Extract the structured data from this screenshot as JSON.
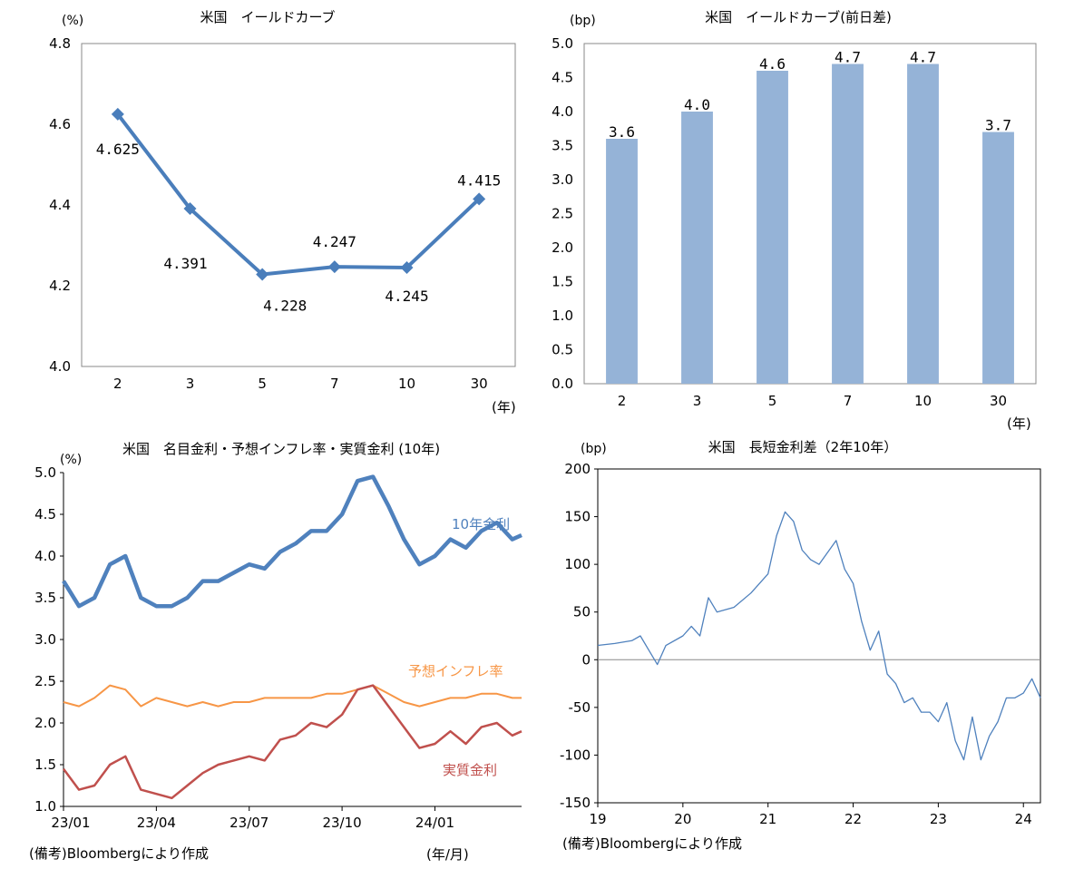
{
  "chart_data": [
    {
      "type": "line",
      "title": "米国　イールドカーブ",
      "unit": "(%)",
      "xunit": "(年)",
      "categories": [
        "2",
        "3",
        "5",
        "7",
        "10",
        "30"
      ],
      "values": [
        4.625,
        4.391,
        4.228,
        4.247,
        4.245,
        4.415
      ],
      "data_labels": [
        "4.625",
        "4.391",
        "4.228",
        "4.247",
        "4.245",
        "4.415"
      ],
      "ylim": [
        4.0,
        4.8
      ],
      "yticks": [
        4.0,
        4.2,
        4.4,
        4.6,
        4.8
      ],
      "ytick_labels": [
        "4.0",
        "4.2",
        "4.4",
        "4.6",
        "4.8"
      ],
      "color": "#4a7ebb",
      "grid": false,
      "legend": "none"
    },
    {
      "type": "bar",
      "title": "米国　イールドカーブ(前日差)",
      "unit": "(bp)",
      "xunit": "(年)",
      "categories": [
        "2",
        "3",
        "5",
        "7",
        "10",
        "30"
      ],
      "values": [
        3.6,
        4.0,
        4.6,
        4.7,
        4.7,
        3.7
      ],
      "data_labels": [
        "3.6",
        "4.0",
        "4.6",
        "4.7",
        "4.7",
        "3.7"
      ],
      "ylim": [
        0.0,
        5.0
      ],
      "yticks": [
        0.0,
        0.5,
        1.0,
        1.5,
        2.0,
        2.5,
        3.0,
        3.5,
        4.0,
        4.5,
        5.0
      ],
      "ytick_labels": [
        "0.0",
        "0.5",
        "1.0",
        "1.5",
        "2.0",
        "2.5",
        "3.0",
        "3.5",
        "4.0",
        "4.5",
        "5.0"
      ],
      "color": "#95b3d7",
      "grid": false,
      "legend": "none"
    },
    {
      "type": "line",
      "title": "米国　名目金利・予想インフレ率・実質金利 (10年)",
      "unit": "(%)",
      "xunit": "(年/月)",
      "x_tick_labels": [
        "23/01",
        "23/04",
        "23/07",
        "23/10",
        "24/01"
      ],
      "x_tick_months": [
        0,
        3,
        6,
        9,
        12
      ],
      "x_range_months": [
        0,
        14.8
      ],
      "ylim": [
        1.0,
        5.0
      ],
      "yticks": [
        1.0,
        1.5,
        2.0,
        2.5,
        3.0,
        3.5,
        4.0,
        4.5,
        5.0
      ],
      "ytick_labels": [
        "1.0",
        "1.5",
        "2.0",
        "2.5",
        "3.0",
        "3.5",
        "4.0",
        "4.5",
        "5.0"
      ],
      "grid": false,
      "legend": "inline-right",
      "series": [
        {
          "name": "10年金利",
          "color": "#4f81bd",
          "x": [
            0,
            0.5,
            1.0,
            1.5,
            2.0,
            2.5,
            3.0,
            3.5,
            4.0,
            4.5,
            5.0,
            5.5,
            6.0,
            6.5,
            7.0,
            7.5,
            8.0,
            8.5,
            9.0,
            9.5,
            10.0,
            10.5,
            11.0,
            11.5,
            12.0,
            12.5,
            13.0,
            13.5,
            14.0,
            14.5,
            14.8
          ],
          "values": [
            3.7,
            3.4,
            3.5,
            3.9,
            4.0,
            3.5,
            3.4,
            3.4,
            3.5,
            3.7,
            3.7,
            3.8,
            3.9,
            3.85,
            4.05,
            4.15,
            4.3,
            4.3,
            4.5,
            4.9,
            4.95,
            4.6,
            4.2,
            3.9,
            4.0,
            4.2,
            4.1,
            4.3,
            4.4,
            4.2,
            4.25
          ]
        },
        {
          "name": "予想インフレ率",
          "color": "#f79646",
          "x": [
            0,
            0.5,
            1.0,
            1.5,
            2.0,
            2.5,
            3.0,
            3.5,
            4.0,
            4.5,
            5.0,
            5.5,
            6.0,
            6.5,
            7.0,
            7.5,
            8.0,
            8.5,
            9.0,
            9.5,
            10.0,
            10.5,
            11.0,
            11.5,
            12.0,
            12.5,
            13.0,
            13.5,
            14.0,
            14.5,
            14.8
          ],
          "values": [
            2.25,
            2.2,
            2.3,
            2.45,
            2.4,
            2.2,
            2.3,
            2.25,
            2.2,
            2.25,
            2.2,
            2.25,
            2.25,
            2.3,
            2.3,
            2.3,
            2.3,
            2.35,
            2.35,
            2.4,
            2.45,
            2.35,
            2.25,
            2.2,
            2.25,
            2.3,
            2.3,
            2.35,
            2.35,
            2.3,
            2.3
          ]
        },
        {
          "name": "実質金利",
          "color": "#c0504d",
          "x": [
            0,
            0.5,
            1.0,
            1.5,
            2.0,
            2.5,
            3.0,
            3.5,
            4.0,
            4.5,
            5.0,
            5.5,
            6.0,
            6.5,
            7.0,
            7.5,
            8.0,
            8.5,
            9.0,
            9.5,
            10.0,
            10.5,
            11.0,
            11.5,
            12.0,
            12.5,
            13.0,
            13.5,
            14.0,
            14.5,
            14.8
          ],
          "values": [
            1.45,
            1.2,
            1.25,
            1.5,
            1.6,
            1.2,
            1.15,
            1.1,
            1.25,
            1.4,
            1.5,
            1.55,
            1.6,
            1.55,
            1.8,
            1.85,
            2.0,
            1.95,
            2.1,
            2.4,
            2.45,
            2.2,
            1.95,
            1.7,
            1.75,
            1.9,
            1.75,
            1.95,
            2.0,
            1.85,
            1.9
          ]
        }
      ]
    },
    {
      "type": "line",
      "title": "米国　長短金利差（2年10年）",
      "unit": "(bp)",
      "x_tick_labels": [
        "19",
        "20",
        "21",
        "22",
        "23",
        "24"
      ],
      "x_tick_years": [
        2019,
        2020,
        2021,
        2022,
        2023,
        2024
      ],
      "x_range_years": [
        2019,
        2024.2
      ],
      "ylim": [
        -150,
        200
      ],
      "yticks": [
        -150,
        -100,
        -50,
        0,
        50,
        100,
        150,
        200
      ],
      "ytick_labels": [
        "-150",
        "-100",
        "-50",
        "0",
        "50",
        "100",
        "150",
        "200"
      ],
      "grid": false,
      "legend": "none",
      "series": [
        {
          "color": "#4f81bd",
          "x": [
            2019.0,
            2019.2,
            2019.4,
            2019.5,
            2019.6,
            2019.7,
            2019.8,
            2020.0,
            2020.1,
            2020.2,
            2020.3,
            2020.4,
            2020.6,
            2020.8,
            2021.0,
            2021.1,
            2021.2,
            2021.3,
            2021.4,
            2021.5,
            2021.6,
            2021.8,
            2021.9,
            2022.0,
            2022.1,
            2022.2,
            2022.3,
            2022.4,
            2022.5,
            2022.6,
            2022.7,
            2022.8,
            2022.9,
            2023.0,
            2023.1,
            2023.2,
            2023.3,
            2023.4,
            2023.5,
            2023.6,
            2023.7,
            2023.8,
            2023.9,
            2024.0,
            2024.1,
            2024.2
          ],
          "values": [
            15,
            17,
            20,
            25,
            10,
            -5,
            15,
            25,
            35,
            25,
            65,
            50,
            55,
            70,
            90,
            130,
            155,
            145,
            115,
            105,
            100,
            125,
            95,
            80,
            40,
            10,
            30,
            -15,
            -25,
            -45,
            -40,
            -55,
            -55,
            -65,
            -45,
            -85,
            -105,
            -60,
            -105,
            -80,
            -65,
            -40,
            -40,
            -35,
            -20,
            -40
          ]
        }
      ]
    }
  ],
  "notes": {
    "source_left": "(備考)Bloombergにより作成",
    "source_right": "(備考)Bloombergにより作成"
  }
}
